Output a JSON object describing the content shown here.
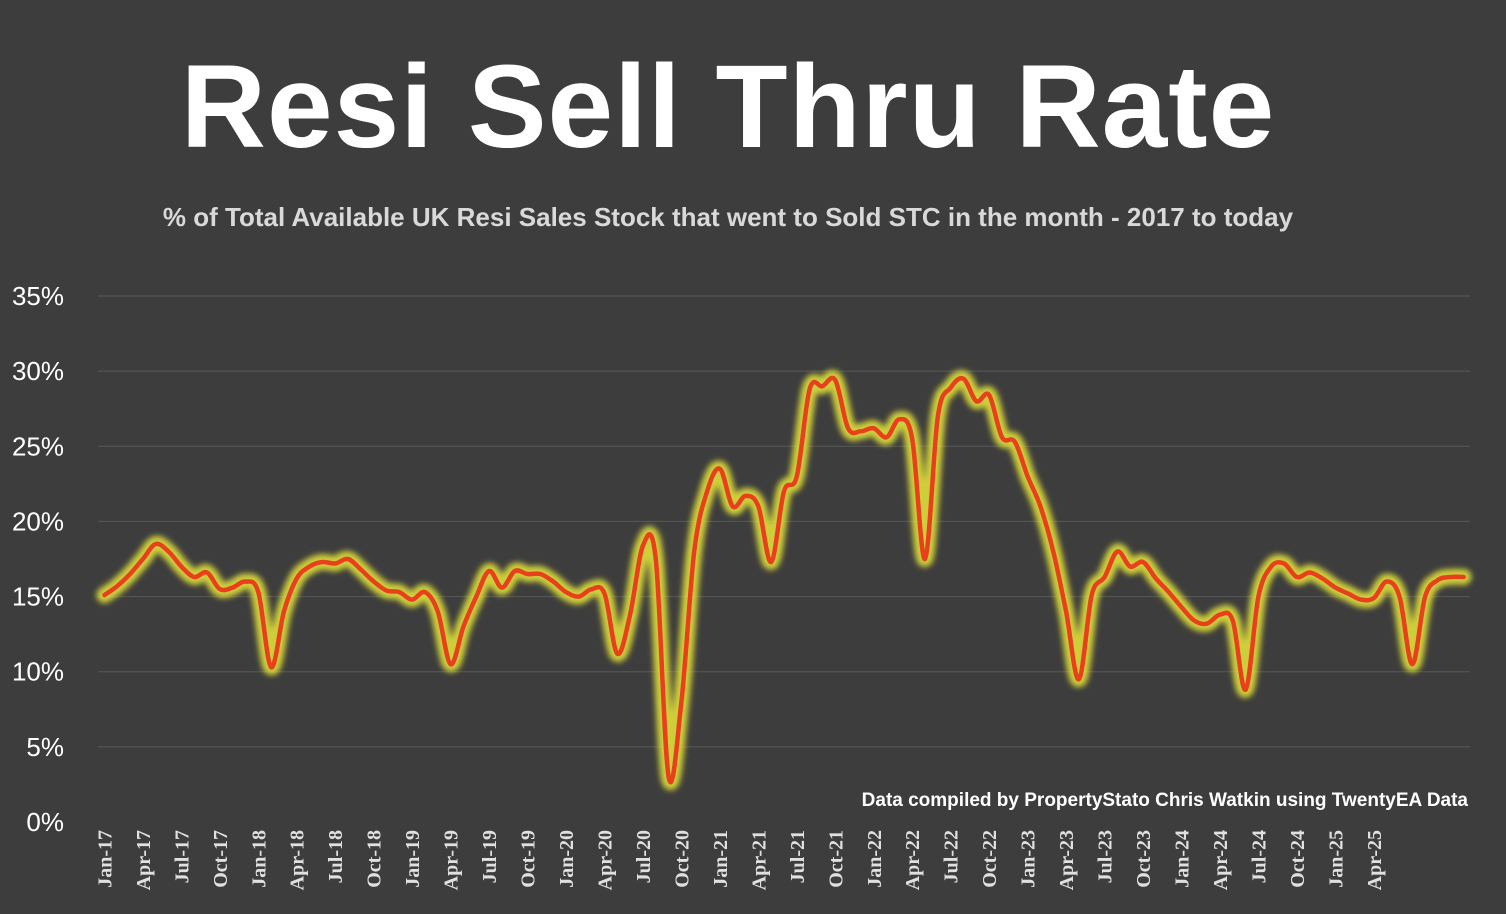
{
  "chart_data": {
    "type": "line",
    "title": "Resi Sell Thru Rate",
    "subtitle": "% of Total Available UK Resi Sales Stock that went to Sold STC in the month - 2017 to today",
    "source_note": "Data compiled by PropertyStato Chris Watkin using TwentyEA Data",
    "xlabel": "",
    "ylabel": "",
    "ylim": [
      0,
      35
    ],
    "y_ticks": [
      "0%",
      "5%",
      "10%",
      "15%",
      "20%",
      "25%",
      "30%",
      "35%"
    ],
    "y_tick_values": [
      0,
      5,
      10,
      15,
      20,
      25,
      30,
      35
    ],
    "x_ticks": [
      "Jan-17",
      "Apr-17",
      "Jul-17",
      "Oct-17",
      "Jan-18",
      "Apr-18",
      "Jul-18",
      "Oct-18",
      "Jan-19",
      "Apr-19",
      "Jul-19",
      "Oct-19",
      "Jan-20",
      "Apr-20",
      "Jul-20",
      "Oct-20",
      "Jan-21",
      "Apr-21",
      "Jul-21",
      "Oct-21",
      "Jan-22",
      "Apr-22",
      "Jul-22",
      "Oct-22",
      "Jan-23",
      "Apr-23",
      "Jul-23",
      "Oct-23",
      "Jan-24",
      "Apr-24",
      "Jul-24",
      "Oct-24",
      "Jan-25",
      "Apr-25"
    ],
    "grid": true,
    "colors": {
      "line": "#e8401c",
      "glow": "#e8e83a",
      "grid": "#585858",
      "background": "#3d3d3d"
    },
    "series": [
      {
        "name": "",
        "values": [
          15.1,
          15.7,
          16.5,
          17.5,
          18.5,
          18.0,
          17.0,
          16.3,
          16.6,
          15.5,
          15.6,
          16.0,
          15.3,
          10.3,
          14.0,
          16.2,
          17.0,
          17.3,
          17.2,
          17.5,
          16.8,
          16.0,
          15.4,
          15.3,
          14.8,
          15.3,
          14.0,
          10.5,
          13.0,
          15.0,
          16.7,
          15.6,
          16.7,
          16.5,
          16.5,
          16.0,
          15.3,
          15.0,
          15.5,
          15.2,
          11.2,
          13.8,
          18.4,
          17.5,
          3.0,
          8.0,
          18.0,
          22.0,
          23.5,
          21.0,
          21.7,
          21.0,
          17.3,
          22.0,
          23.0,
          28.8,
          29.0,
          29.4,
          26.2,
          26.0,
          26.2,
          25.6,
          26.8,
          25.5,
          17.5,
          27.0,
          28.9,
          29.5,
          28.0,
          28.4,
          25.6,
          25.3,
          23.0,
          21.0,
          18.0,
          14.0,
          9.5,
          15.1,
          16.3,
          18.0,
          17.0,
          17.3,
          16.2,
          15.3,
          14.3,
          13.4,
          13.2,
          13.8,
          13.4,
          8.8,
          15.0,
          17.0,
          17.2,
          16.3,
          16.6,
          16.2,
          15.6,
          15.2,
          14.8,
          14.9,
          16.0,
          15.0,
          10.5,
          15.0,
          16.1,
          16.3,
          16.3
        ]
      }
    ]
  }
}
